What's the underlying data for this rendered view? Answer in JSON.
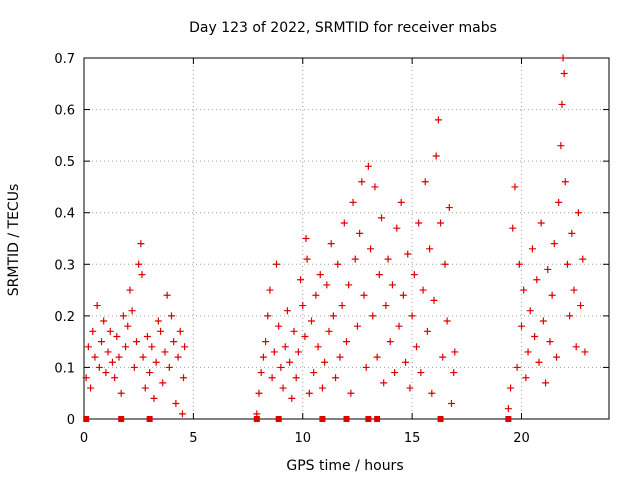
{
  "chart_data": {
    "type": "scatter",
    "title": "Day 123 of 2022, SRMTID for receiver mabs",
    "xlabel": "GPS time / hours",
    "ylabel": "SRMTID / TECUs",
    "xlim": [
      0,
      24
    ],
    "ylim": [
      0,
      0.7
    ],
    "xticks": [
      0,
      5,
      10,
      15,
      20
    ],
    "yticks": [
      0,
      0.1,
      0.2,
      0.3,
      0.4,
      0.5,
      0.6,
      0.7
    ],
    "xtick_labels": [
      "0",
      "5",
      "10",
      "15",
      "20"
    ],
    "ytick_labels": [
      "0",
      "0.1",
      "0.2",
      "0.3",
      "0.4",
      "0.5",
      "0.6",
      "0.7"
    ],
    "grid": true,
    "marker": "+",
    "marker_color": "#dd0000",
    "axis_markers": {
      "description": "small red squares on the x axis at y=0",
      "x": [
        0.1,
        1.7,
        3.0,
        7.9,
        8.9,
        10.9,
        12.0,
        13.0,
        13.4,
        16.3,
        19.4
      ]
    },
    "series": [
      {
        "name": "mabs",
        "points": [
          [
            0.1,
            0.08
          ],
          [
            0.2,
            0.14
          ],
          [
            0.3,
            0.06
          ],
          [
            0.4,
            0.17
          ],
          [
            0.5,
            0.12
          ],
          [
            0.6,
            0.22
          ],
          [
            0.7,
            0.1
          ],
          [
            0.8,
            0.15
          ],
          [
            0.9,
            0.19
          ],
          [
            1.0,
            0.09
          ],
          [
            1.1,
            0.13
          ],
          [
            1.2,
            0.17
          ],
          [
            1.3,
            0.11
          ],
          [
            1.4,
            0.08
          ],
          [
            1.5,
            0.16
          ],
          [
            1.6,
            0.12
          ],
          [
            1.7,
            0.05
          ],
          [
            1.8,
            0.2
          ],
          [
            1.9,
            0.14
          ],
          [
            2.0,
            0.18
          ],
          [
            2.1,
            0.25
          ],
          [
            2.2,
            0.21
          ],
          [
            2.3,
            0.1
          ],
          [
            2.4,
            0.15
          ],
          [
            2.5,
            0.3
          ],
          [
            2.6,
            0.34
          ],
          [
            2.65,
            0.28
          ],
          [
            2.7,
            0.12
          ],
          [
            2.8,
            0.06
          ],
          [
            2.9,
            0.16
          ],
          [
            3.0,
            0.09
          ],
          [
            3.1,
            0.14
          ],
          [
            3.2,
            0.04
          ],
          [
            3.3,
            0.11
          ],
          [
            3.4,
            0.19
          ],
          [
            3.5,
            0.17
          ],
          [
            3.6,
            0.07
          ],
          [
            3.7,
            0.13
          ],
          [
            3.8,
            0.24
          ],
          [
            3.9,
            0.1
          ],
          [
            4.0,
            0.2
          ],
          [
            4.1,
            0.15
          ],
          [
            4.2,
            0.03
          ],
          [
            4.3,
            0.12
          ],
          [
            4.4,
            0.17
          ],
          [
            4.5,
            0.01
          ],
          [
            4.55,
            0.08
          ],
          [
            4.6,
            0.14
          ],
          [
            7.9,
            0.01
          ],
          [
            8.0,
            0.05
          ],
          [
            8.1,
            0.09
          ],
          [
            8.2,
            0.12
          ],
          [
            8.3,
            0.15
          ],
          [
            8.4,
            0.2
          ],
          [
            8.5,
            0.25
          ],
          [
            8.6,
            0.08
          ],
          [
            8.7,
            0.13
          ],
          [
            8.8,
            0.3
          ],
          [
            8.9,
            0.18
          ],
          [
            9.0,
            0.1
          ],
          [
            9.1,
            0.06
          ],
          [
            9.2,
            0.14
          ],
          [
            9.3,
            0.21
          ],
          [
            9.4,
            0.11
          ],
          [
            9.5,
            0.04
          ],
          [
            9.6,
            0.17
          ],
          [
            9.7,
            0.08
          ],
          [
            9.8,
            0.13
          ],
          [
            9.9,
            0.27
          ],
          [
            10.0,
            0.22
          ],
          [
            10.1,
            0.16
          ],
          [
            10.15,
            0.35
          ],
          [
            10.2,
            0.31
          ],
          [
            10.3,
            0.05
          ],
          [
            10.4,
            0.19
          ],
          [
            10.5,
            0.09
          ],
          [
            10.6,
            0.24
          ],
          [
            10.7,
            0.14
          ],
          [
            10.8,
            0.28
          ],
          [
            10.9,
            0.06
          ],
          [
            11.0,
            0.11
          ],
          [
            11.1,
            0.26
          ],
          [
            11.2,
            0.17
          ],
          [
            11.3,
            0.34
          ],
          [
            11.4,
            0.2
          ],
          [
            11.5,
            0.08
          ],
          [
            11.6,
            0.3
          ],
          [
            11.7,
            0.12
          ],
          [
            11.8,
            0.22
          ],
          [
            11.9,
            0.38
          ],
          [
            12.0,
            0.15
          ],
          [
            12.1,
            0.26
          ],
          [
            12.2,
            0.05
          ],
          [
            12.3,
            0.42
          ],
          [
            12.4,
            0.31
          ],
          [
            12.5,
            0.18
          ],
          [
            12.6,
            0.36
          ],
          [
            12.7,
            0.46
          ],
          [
            12.8,
            0.24
          ],
          [
            12.9,
            0.1
          ],
          [
            13.0,
            0.49
          ],
          [
            13.1,
            0.33
          ],
          [
            13.2,
            0.2
          ],
          [
            13.3,
            0.45
          ],
          [
            13.4,
            0.12
          ],
          [
            13.5,
            0.28
          ],
          [
            13.6,
            0.39
          ],
          [
            13.7,
            0.07
          ],
          [
            13.8,
            0.22
          ],
          [
            13.9,
            0.31
          ],
          [
            14.0,
            0.15
          ],
          [
            14.1,
            0.26
          ],
          [
            14.2,
            0.09
          ],
          [
            14.3,
            0.37
          ],
          [
            14.4,
            0.18
          ],
          [
            14.5,
            0.42
          ],
          [
            14.6,
            0.24
          ],
          [
            14.7,
            0.11
          ],
          [
            14.8,
            0.32
          ],
          [
            14.9,
            0.06
          ],
          [
            15.0,
            0.2
          ],
          [
            15.1,
            0.28
          ],
          [
            15.2,
            0.14
          ],
          [
            15.3,
            0.38
          ],
          [
            15.4,
            0.09
          ],
          [
            15.5,
            0.25
          ],
          [
            15.6,
            0.46
          ],
          [
            15.7,
            0.17
          ],
          [
            15.8,
            0.33
          ],
          [
            15.9,
            0.05
          ],
          [
            16.0,
            0.23
          ],
          [
            16.1,
            0.51
          ],
          [
            16.2,
            0.58
          ],
          [
            16.3,
            0.38
          ],
          [
            16.4,
            0.12
          ],
          [
            16.5,
            0.3
          ],
          [
            16.6,
            0.19
          ],
          [
            16.7,
            0.41
          ],
          [
            16.8,
            0.03
          ],
          [
            16.9,
            0.09
          ],
          [
            16.95,
            0.13
          ],
          [
            19.4,
            0.02
          ],
          [
            19.5,
            0.06
          ],
          [
            19.6,
            0.37
          ],
          [
            19.7,
            0.45
          ],
          [
            19.8,
            0.1
          ],
          [
            19.9,
            0.3
          ],
          [
            20.0,
            0.18
          ],
          [
            20.1,
            0.25
          ],
          [
            20.2,
            0.08
          ],
          [
            20.3,
            0.13
          ],
          [
            20.4,
            0.21
          ],
          [
            20.5,
            0.33
          ],
          [
            20.6,
            0.16
          ],
          [
            20.7,
            0.27
          ],
          [
            20.8,
            0.11
          ],
          [
            20.9,
            0.38
          ],
          [
            21.0,
            0.19
          ],
          [
            21.1,
            0.07
          ],
          [
            21.2,
            0.29
          ],
          [
            21.3,
            0.15
          ],
          [
            21.4,
            0.24
          ],
          [
            21.5,
            0.34
          ],
          [
            21.6,
            0.12
          ],
          [
            21.7,
            0.42
          ],
          [
            21.8,
            0.53
          ],
          [
            21.85,
            0.61
          ],
          [
            21.9,
            0.7
          ],
          [
            21.95,
            0.67
          ],
          [
            22.0,
            0.46
          ],
          [
            22.1,
            0.3
          ],
          [
            22.2,
            0.2
          ],
          [
            22.3,
            0.36
          ],
          [
            22.4,
            0.25
          ],
          [
            22.5,
            0.14
          ],
          [
            22.6,
            0.4
          ],
          [
            22.7,
            0.22
          ],
          [
            22.8,
            0.31
          ],
          [
            22.9,
            0.13
          ]
        ]
      }
    ]
  }
}
